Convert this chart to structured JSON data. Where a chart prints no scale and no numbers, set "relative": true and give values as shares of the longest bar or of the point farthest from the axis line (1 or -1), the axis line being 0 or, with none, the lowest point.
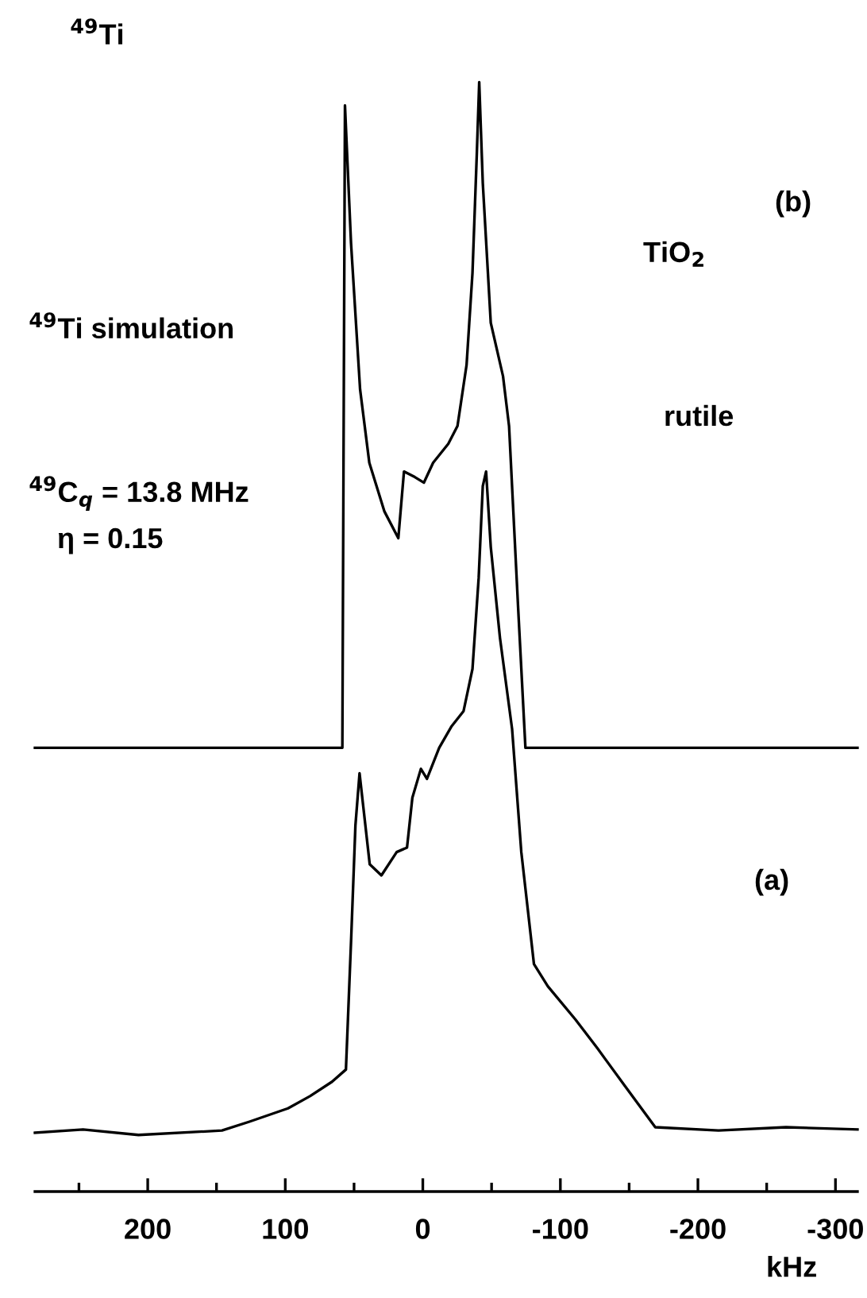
{
  "chart_data": {
    "type": "line",
    "relative": true,
    "xlabel": "kHz",
    "xlim": [
      282,
      -316
    ],
    "xticks": [
      {
        "value": 250,
        "label": null
      },
      200,
      {
        "value": 150,
        "label": null
      },
      100,
      {
        "value": 50,
        "label": null
      },
      0,
      {
        "value": -50,
        "label": null
      },
      {
        "value": -100,
        "label": "-100"
      },
      {
        "value": -150,
        "label": null
      },
      {
        "value": -200,
        "label": "-200"
      },
      {
        "value": -250,
        "label": null
      },
      {
        "value": -300,
        "label": "-300"
      }
    ],
    "tick_labels": "x",
    "series": [
      {
        "color": "#000000",
        "x": [
          282,
          58.5,
          56.6,
          52.2,
          45.6,
          38.9,
          27.9,
          17.8,
          13.7,
          5.8,
          -0.8,
          -7.5,
          -18.5,
          -25.2,
          -31.8,
          -36.1,
          -39.3,
          -41,
          -43.6,
          -49.4,
          -58.3,
          -62.7,
          -69.3,
          -74.6,
          -316
        ],
        "values": [
          0.4,
          0.4,
          0.979,
          0.855,
          0.723,
          0.657,
          0.613,
          0.589,
          0.649,
          0.644,
          0.639,
          0.657,
          0.674,
          0.69,
          0.745,
          0.828,
          0.937,
          1.0,
          0.909,
          0.783,
          0.735,
          0.69,
          0.526,
          0.4,
          0.4
        ]
      },
      {
        "color": "#000000",
        "x": [
          282,
          247,
          206.7,
          146,
          126,
          98,
          82,
          66,
          55.9,
          52,
          49,
          46,
          38.6,
          30.1,
          19,
          11.5,
          7.6,
          1.4,
          -3,
          -11.9,
          -20.7,
          -29.6,
          -36.1,
          -40.6,
          -43.6,
          -46,
          -49.4,
          -56.1,
          -64.9,
          -71.6,
          -80.8,
          -90.9,
          -111,
          -127,
          -147,
          -169,
          -215,
          -264,
          -316
        ],
        "values": [
          0.053,
          0.056,
          0.051,
          0.055,
          0.063,
          0.075,
          0.086,
          0.099,
          0.11,
          0.231,
          0.33,
          0.377,
          0.295,
          0.285,
          0.306,
          0.31,
          0.355,
          0.381,
          0.372,
          0.4,
          0.419,
          0.433,
          0.471,
          0.553,
          0.636,
          0.649,
          0.581,
          0.499,
          0.417,
          0.306,
          0.205,
          0.185,
          0.155,
          0.129,
          0.095,
          0.058,
          0.055,
          0.058,
          0.056
        ]
      }
    ],
    "annotations": [
      "$^{49}$Ti",
      "(b)",
      "TiO$_{2}$",
      "$^{49}$Ti simulation",
      "rutile",
      "$^{49}$C$_{q}$ = 13.8 MHz",
      "η = 0.15",
      "(a)"
    ]
  }
}
